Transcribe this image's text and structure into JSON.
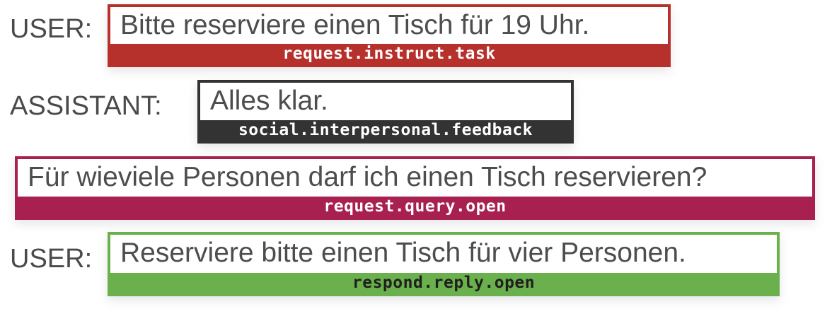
{
  "turns": [
    {
      "speaker": "USER:",
      "utterance": "Bitte reserviere einen Tisch für 19 Uhr.",
      "label": "request.instruct.task",
      "color": "#b7312c"
    },
    {
      "speaker": "ASSISTANT:",
      "utterance": "Alles klar.",
      "label": "social.interpersonal.feedback",
      "color": "#333333"
    },
    {
      "speaker": "",
      "utterance": "Für wieviele Personen darf ich einen Tisch reservieren?",
      "label": "request.query.open",
      "color": "#a8204f"
    },
    {
      "speaker": "USER:",
      "utterance": "Reserviere bitte einen Tisch für vier Personen.",
      "label": "respond.reply.open",
      "color": "#6ab04c"
    }
  ]
}
